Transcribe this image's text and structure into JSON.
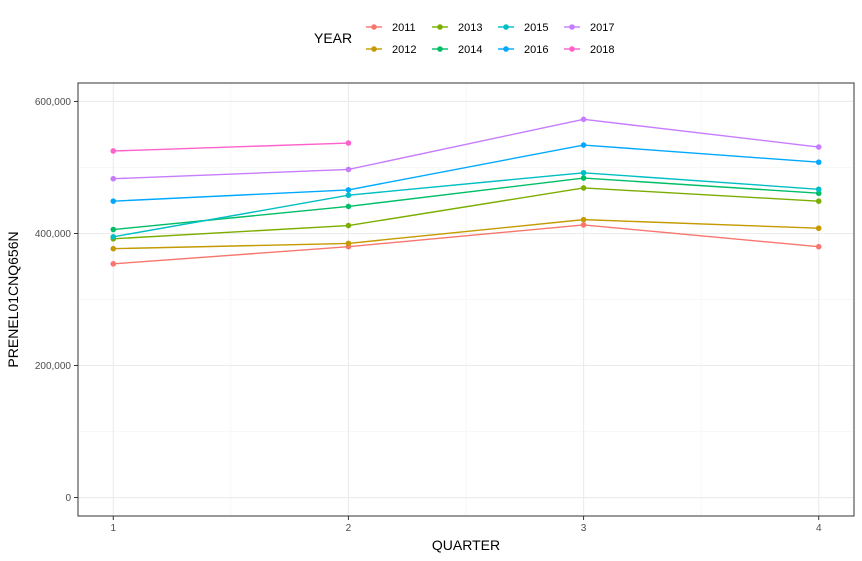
{
  "chart_data": {
    "type": "line",
    "xlabel": "QUARTER",
    "ylabel": "PRENEL01CNQ656N",
    "legend_title": "YEAR",
    "legend_position": "top",
    "grid": true,
    "x": [
      1,
      2,
      3,
      4
    ],
    "x_ticks": [
      "1",
      "2",
      "3",
      "4"
    ],
    "xlim": [
      0.85,
      4.15
    ],
    "ylim": [
      -28000,
      628000
    ],
    "y_ticks": [
      0,
      200000,
      400000,
      600000
    ],
    "y_tick_labels": [
      "0",
      "200,000",
      "400,000",
      "600,000"
    ],
    "series": [
      {
        "name": "2011",
        "color": "#F8766D",
        "values": [
          354000,
          380000,
          413000,
          380000
        ]
      },
      {
        "name": "2012",
        "color": "#C49A00",
        "values": [
          377000,
          385000,
          421000,
          408000
        ]
      },
      {
        "name": "2013",
        "color": "#7CAE00",
        "values": [
          392000,
          412000,
          469000,
          449000
        ]
      },
      {
        "name": "2014",
        "color": "#00BE67",
        "values": [
          406000,
          441000,
          484000,
          461000
        ]
      },
      {
        "name": "2015",
        "color": "#00BFC4",
        "values": [
          395000,
          458000,
          492000,
          467000
        ]
      },
      {
        "name": "2016",
        "color": "#00A9FF",
        "values": [
          449000,
          466000,
          534000,
          508000
        ]
      },
      {
        "name": "2017",
        "color": "#C77CFF",
        "values": [
          483000,
          497000,
          573000,
          531000
        ]
      },
      {
        "name": "2018",
        "color": "#FF61CC",
        "values": [
          525000,
          537000,
          null,
          null
        ]
      }
    ]
  }
}
